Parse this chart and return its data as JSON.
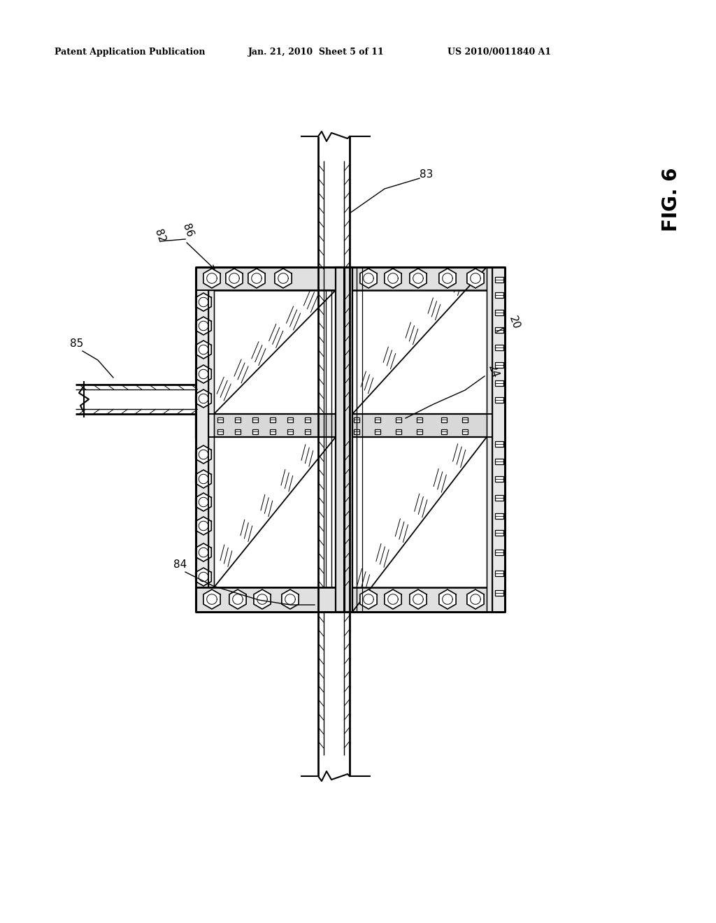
{
  "bg_color": "#ffffff",
  "header_left": "Patent Application Publication",
  "header_center": "Jan. 21, 2010  Sheet 5 of 11",
  "header_right": "US 2010/0011840 A1",
  "fig_label": "FIG. 6",
  "lc": "#000000",
  "lw": 1.4
}
